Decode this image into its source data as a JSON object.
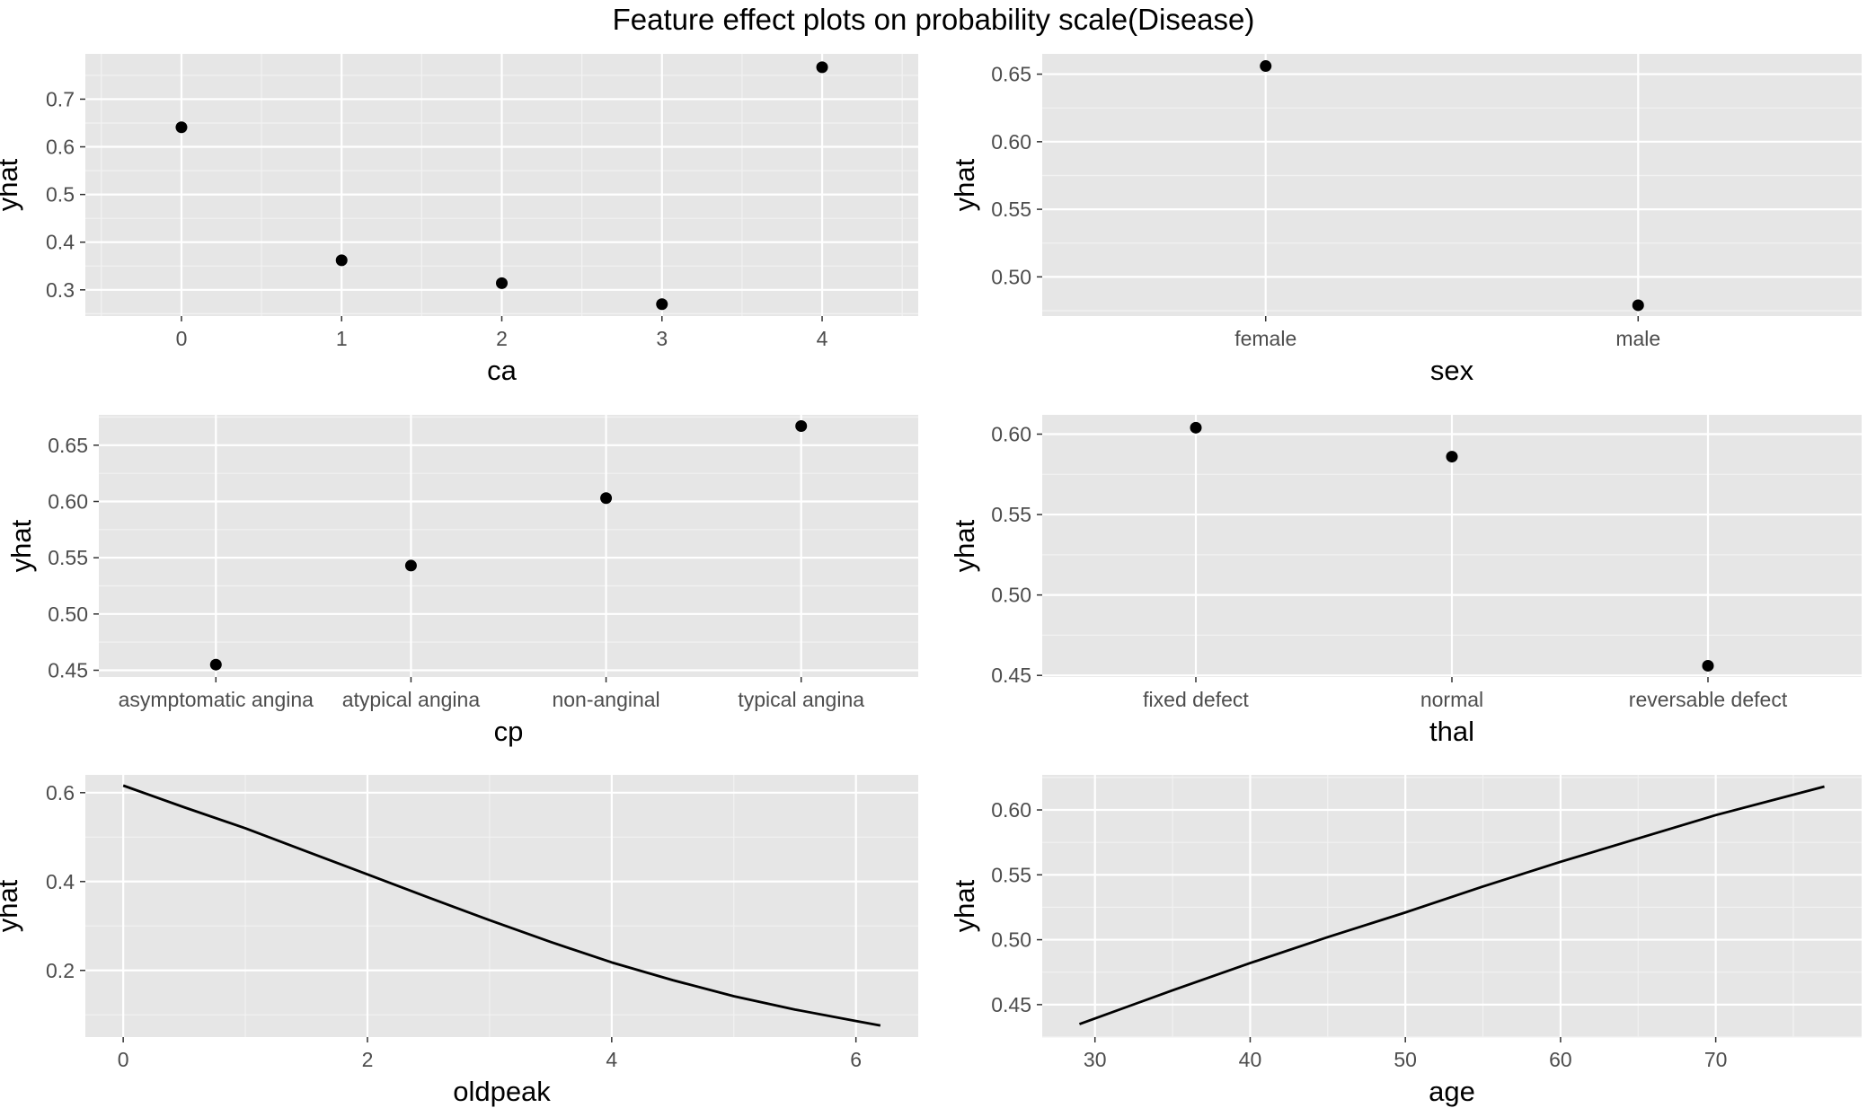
{
  "figure": {
    "title": "Feature effect plots on probability scale(Disease)"
  },
  "style": {
    "panel_bg": "#e6e6e6",
    "grid_major": "#ffffff",
    "grid_minor": "#f2f2f2",
    "mark": "#000000",
    "tick_text": "#4d4d4d",
    "axis_text": "#000000"
  },
  "chart_data": [
    {
      "type": "scatter",
      "xtype": "numeric",
      "xlabel": "ca",
      "ylabel": "yhat",
      "x": [
        0,
        1,
        2,
        3,
        4
      ],
      "y": [
        0.641,
        0.362,
        0.314,
        0.27,
        0.767
      ],
      "xlim": [
        -0.6,
        4.6
      ],
      "ylim": [
        0.245,
        0.795
      ],
      "xticks": [
        0,
        1,
        2,
        3,
        4
      ],
      "xtick_labels": [
        "0",
        "1",
        "2",
        "3",
        "4"
      ],
      "yticks": [
        0.3,
        0.4,
        0.5,
        0.6,
        0.7
      ],
      "ytick_labels": [
        "0.3",
        "0.4",
        "0.5",
        "0.6",
        "0.7"
      ],
      "grid": true
    },
    {
      "type": "scatter",
      "xtype": "categorical",
      "xlabel": "sex",
      "ylabel": "yhat",
      "categories": [
        "female",
        "male"
      ],
      "values": [
        0.656,
        0.479
      ],
      "ylim": [
        0.471,
        0.665
      ],
      "yticks": [
        0.5,
        0.55,
        0.6,
        0.65
      ],
      "ytick_labels": [
        "0.50",
        "0.55",
        "0.60",
        "0.65"
      ],
      "grid": true
    },
    {
      "type": "scatter",
      "xtype": "categorical",
      "xlabel": "cp",
      "ylabel": "yhat",
      "categories": [
        "asymptomatic angina",
        "atypical angina",
        "non-anginal",
        "typical angina"
      ],
      "values": [
        0.455,
        0.543,
        0.603,
        0.667
      ],
      "ylim": [
        0.444,
        0.677
      ],
      "yticks": [
        0.45,
        0.5,
        0.55,
        0.6,
        0.65
      ],
      "ytick_labels": [
        "0.45",
        "0.50",
        "0.55",
        "0.60",
        "0.65"
      ],
      "grid": true
    },
    {
      "type": "scatter",
      "xtype": "categorical",
      "xlabel": "thal",
      "ylabel": "yhat",
      "categories": [
        "fixed defect",
        "normal",
        "reversable defect"
      ],
      "values": [
        0.604,
        0.586,
        0.456
      ],
      "ylim": [
        0.449,
        0.612
      ],
      "yticks": [
        0.45,
        0.5,
        0.55,
        0.6
      ],
      "ytick_labels": [
        "0.45",
        "0.50",
        "0.55",
        "0.60"
      ],
      "grid": true
    },
    {
      "type": "line",
      "xtype": "numeric",
      "xlabel": "oldpeak",
      "ylabel": "yhat",
      "x": [
        0,
        0.5,
        1,
        1.5,
        2,
        2.5,
        3,
        3.5,
        4,
        4.5,
        5,
        5.5,
        6,
        6.2
      ],
      "y": [
        0.616,
        0.567,
        0.52,
        0.468,
        0.416,
        0.364,
        0.313,
        0.264,
        0.218,
        0.178,
        0.142,
        0.112,
        0.086,
        0.076
      ],
      "xlim": [
        -0.31,
        6.51
      ],
      "ylim": [
        0.05,
        0.64
      ],
      "xticks": [
        0,
        2,
        4,
        6
      ],
      "xtick_labels": [
        "0",
        "2",
        "4",
        "6"
      ],
      "yticks": [
        0.2,
        0.4,
        0.6
      ],
      "ytick_labels": [
        "0.2",
        "0.4",
        "0.6"
      ],
      "grid": true
    },
    {
      "type": "line",
      "xtype": "numeric",
      "xlabel": "age",
      "ylabel": "yhat",
      "x": [
        29,
        35,
        40,
        45,
        50,
        55,
        60,
        65,
        70,
        77
      ],
      "y": [
        0.435,
        0.461,
        0.482,
        0.502,
        0.521,
        0.541,
        0.56,
        0.578,
        0.596,
        0.618
      ],
      "xlim": [
        26.6,
        79.4
      ],
      "ylim": [
        0.425,
        0.627
      ],
      "xticks": [
        30,
        40,
        50,
        60,
        70
      ],
      "xtick_labels": [
        "30",
        "40",
        "50",
        "60",
        "70"
      ],
      "yticks": [
        0.45,
        0.5,
        0.55,
        0.6
      ],
      "ytick_labels": [
        "0.45",
        "0.50",
        "0.55",
        "0.60"
      ],
      "grid": true
    }
  ]
}
